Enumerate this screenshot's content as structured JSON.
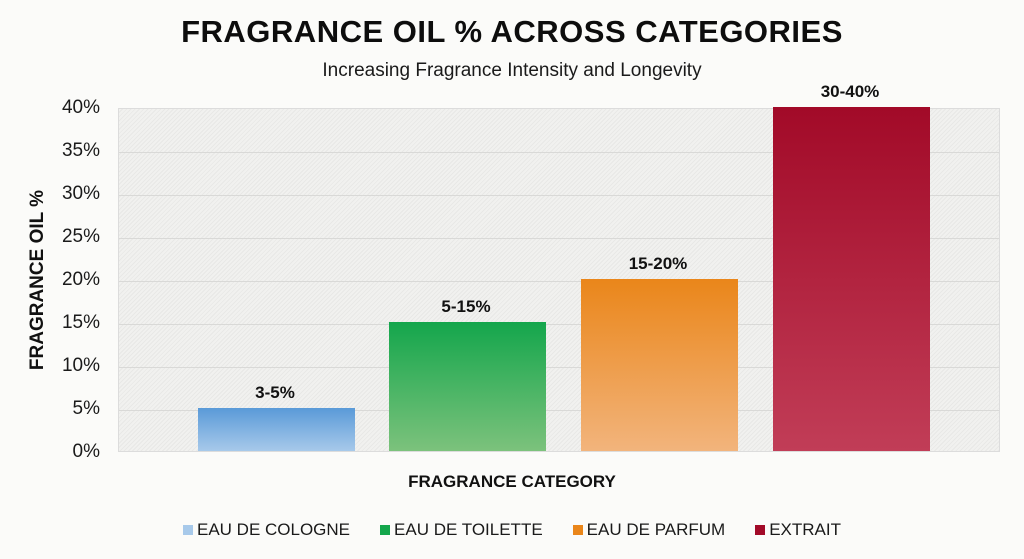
{
  "chart_data": {
    "type": "bar",
    "title": "FRAGRANCE OIL % ACROSS CATEGORIES",
    "subtitle": "Increasing Fragrance Intensity and Longevity",
    "xlabel": "FRAGRANCE CATEGORY",
    "ylabel": "FRAGRANCE OIL %",
    "ylim": [
      0,
      40
    ],
    "yticks": [
      "0%",
      "5%",
      "10%",
      "15%",
      "20%",
      "25%",
      "30%",
      "35%",
      "40%"
    ],
    "grid": true,
    "legend_position": "bottom",
    "categories": [
      "EAU DE COLOGNE",
      "EAU DE TOILETTE",
      "EAU DE PARFUM",
      "EXTRAIT"
    ],
    "values": [
      5,
      15,
      20,
      40
    ],
    "data_labels": [
      "3-5%",
      "5-15%",
      "15-20%",
      "30-40%"
    ],
    "colors": [
      "#5b9bd9",
      "#1aa84f",
      "#ea8a1e",
      "#a50d2a"
    ]
  }
}
